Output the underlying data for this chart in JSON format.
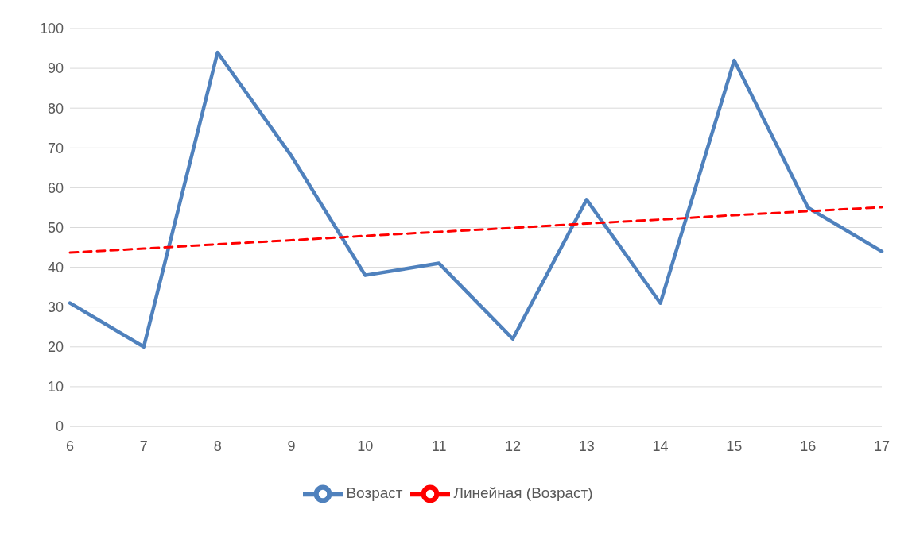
{
  "chart_data": {
    "type": "line",
    "categories": [
      "6",
      "7",
      "8",
      "9",
      "10",
      "11",
      "12",
      "13",
      "14",
      "15",
      "16",
      "17"
    ],
    "series": [
      {
        "name": "Возраст",
        "color": "#4f81bd",
        "line_style": "solid",
        "values": [
          31,
          20,
          94,
          68,
          38,
          41,
          22,
          57,
          31,
          92,
          55,
          44
        ]
      },
      {
        "name": "Линейная (Возраст)",
        "color": "#ff0000",
        "line_style": "dashed",
        "values": [
          43.7,
          44.7,
          45.8,
          46.8,
          47.9,
          48.9,
          49.9,
          51.0,
          52.0,
          53.1,
          54.1,
          55.1
        ]
      }
    ],
    "ylim": [
      0,
      100
    ],
    "yticks": [
      0,
      10,
      20,
      30,
      40,
      50,
      60,
      70,
      80,
      90,
      100
    ],
    "grid": "y",
    "legend": "bottom",
    "marker": "none"
  }
}
